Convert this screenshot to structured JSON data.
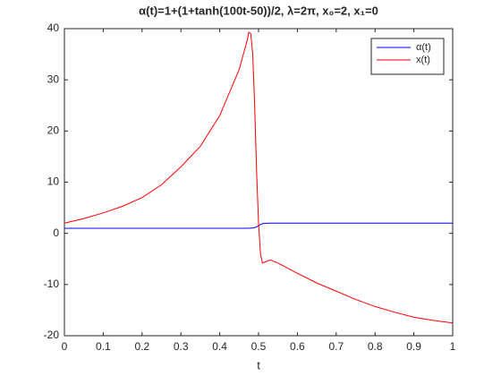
{
  "chart_data": {
    "type": "line",
    "title": "α(t)=1+(1+tanh(100t-50))/2,  λ=2π, x₀=2, x₁=0",
    "x_label": "t",
    "x": [
      0,
      0.05,
      0.1,
      0.15,
      0.2,
      0.25,
      0.3,
      0.35,
      0.4,
      0.45,
      0.47,
      0.475,
      0.48,
      0.485,
      0.49,
      0.495,
      0.5,
      0.505,
      0.51,
      0.52,
      0.53,
      0.55,
      0.6,
      0.65,
      0.7,
      0.75,
      0.8,
      0.85,
      0.9,
      0.95,
      1
    ],
    "series": [
      {
        "name": "α(t)",
        "color": "#0000ff",
        "values": [
          1,
          1,
          1,
          1,
          1,
          1,
          1,
          1,
          1,
          1,
          1,
          1.01,
          1.02,
          1.05,
          1.12,
          1.27,
          1.5,
          1.73,
          1.88,
          1.98,
          2,
          2,
          2,
          2,
          2,
          2,
          2,
          2,
          2,
          2,
          2
        ]
      },
      {
        "name": "x(t)",
        "color": "#ff0000",
        "values": [
          2,
          2.9,
          4,
          5.3,
          7,
          9.5,
          13,
          17,
          23,
          32,
          37.5,
          39.3,
          39,
          35,
          25,
          12,
          2,
          -4,
          -5.8,
          -5.5,
          -5.2,
          -5.8,
          -7.8,
          -9.7,
          -11.3,
          -12.9,
          -14.3,
          -15.4,
          -16.4,
          -17,
          -17.5
        ]
      }
    ],
    "xlim": [
      0,
      1
    ],
    "xticks": [
      0,
      0.1,
      0.2,
      0.3,
      0.4,
      0.5,
      0.6,
      0.7,
      0.8,
      0.9,
      1
    ],
    "ylim": [
      -20,
      40
    ],
    "yticks": [
      -20,
      -10,
      0,
      10,
      20,
      30,
      40
    ],
    "grid": false,
    "legend": "upper-right"
  }
}
